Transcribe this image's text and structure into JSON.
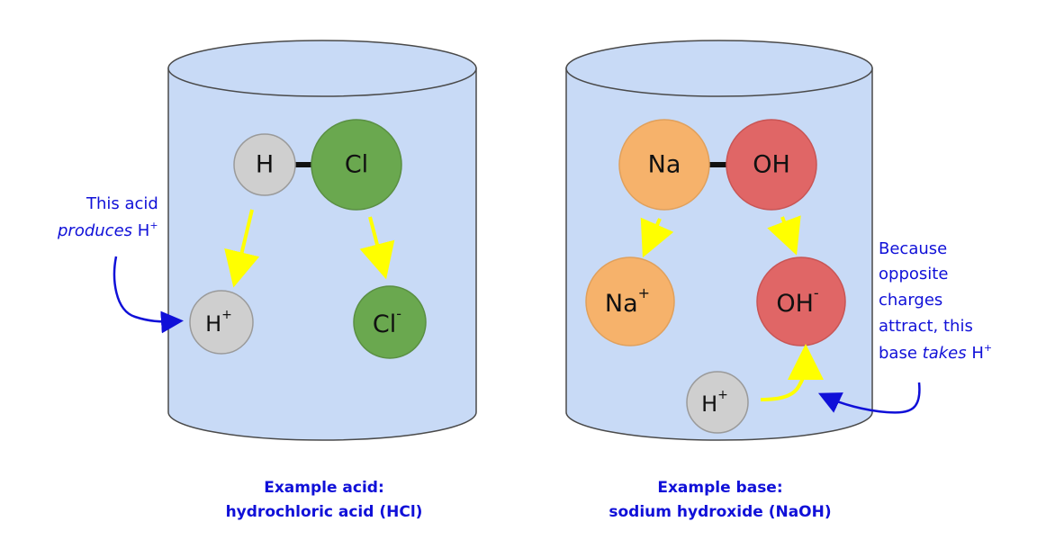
{
  "colors": {
    "solution_fill": "#c8daf6",
    "outline": "#4a4a4a",
    "hydrogen": "#cfcfcf",
    "chlorine": "#6aa84f",
    "sodium": "#f6b26b",
    "hydroxide": "#e06666",
    "reaction_arrow": "#ffff00",
    "annotation": "#1010d8"
  },
  "acid": {
    "molecule": {
      "left": "H",
      "right": "Cl"
    },
    "products": {
      "h_ion": "H",
      "h_charge": "+",
      "cl_ion": "Cl",
      "cl_charge": "-"
    },
    "note_line1": "This acid",
    "note_line2_a": "produces",
    "note_line2_b": "H",
    "note_line2_charge": "+",
    "caption_line1": "Example acid:",
    "caption_line2": "hydrochloric acid (HCl)"
  },
  "base": {
    "molecule": {
      "left": "Na",
      "right": "OH"
    },
    "products": {
      "na_ion": "Na",
      "na_charge": "+",
      "oh_ion": "OH",
      "oh_charge": "-"
    },
    "incoming": {
      "h_ion": "H",
      "h_charge": "+"
    },
    "note_line1": "Because",
    "note_line2": "opposite",
    "note_line3": "charges",
    "note_line4": "attract, this",
    "note_line5_a": "base",
    "note_line5_b": "takes",
    "note_line5_c": "H",
    "note_line5_charge": "+",
    "caption_line1": "Example base:",
    "caption_line2": "sodium hydroxide (NaOH)"
  }
}
